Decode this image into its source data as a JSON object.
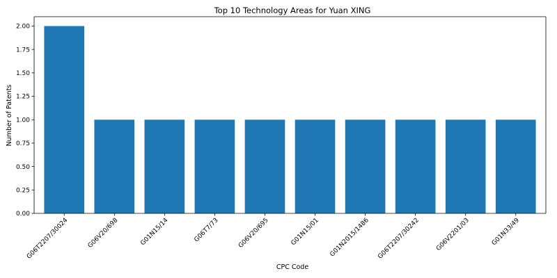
{
  "chart_data": {
    "type": "bar",
    "title": "Top 10 Technology Areas for Yuan XING",
    "xlabel": "CPC Code",
    "ylabel": "Number of Patents",
    "categories": [
      "G06T2207/30024",
      "G06V20/698",
      "G01N15/14",
      "G06T7/73",
      "G06V20/695",
      "G01N15/01",
      "G01N2015/1486",
      "G06T2207/30242",
      "G06V2201/03",
      "G01N33/49"
    ],
    "values": [
      2,
      1,
      1,
      1,
      1,
      1,
      1,
      1,
      1,
      1
    ],
    "ylim": [
      0,
      2.1
    ],
    "yticks": [
      "0.00",
      "0.25",
      "0.50",
      "0.75",
      "1.00",
      "1.25",
      "1.50",
      "1.75",
      "2.00"
    ],
    "grid": false,
    "bar_color": "#1f77b4"
  }
}
